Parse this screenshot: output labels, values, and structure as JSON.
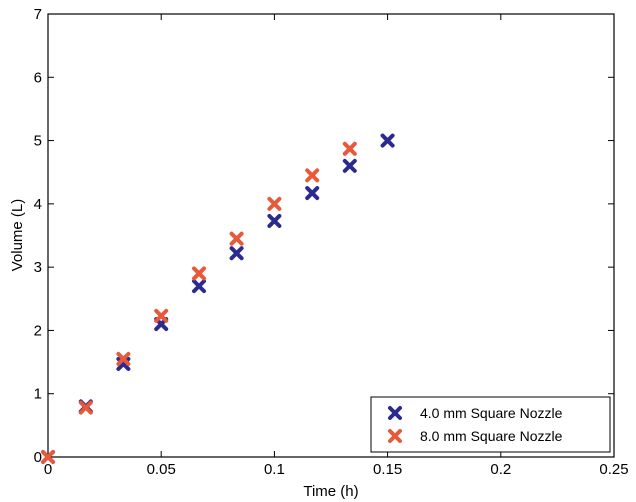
{
  "chart_data": {
    "type": "scatter",
    "title": "",
    "xlabel": "Time (h)",
    "ylabel": "Volume (L)",
    "xlim": [
      0,
      0.25
    ],
    "ylim": [
      0,
      7
    ],
    "xticks": [
      0,
      0.05,
      0.1,
      0.15,
      0.2,
      0.25
    ],
    "xtick_labels": [
      "0",
      "0.05",
      "0.1",
      "0.15",
      "0.2",
      "0.25"
    ],
    "yticks": [
      0,
      1,
      2,
      3,
      4,
      5,
      6,
      7
    ],
    "ytick_labels": [
      "0",
      "1",
      "2",
      "3",
      "4",
      "5",
      "6",
      "7"
    ],
    "grid": false,
    "legend_position": "bottom-right",
    "marker": "x",
    "series": [
      {
        "name": "4.0 mm Square Nozzle",
        "color": "#2b2a8f",
        "x": [
          0,
          0.0167,
          0.0333,
          0.05,
          0.0667,
          0.0833,
          0.1,
          0.1167,
          0.1333,
          0.15
        ],
        "y": [
          0,
          0.8,
          1.47,
          2.1,
          2.7,
          3.22,
          3.73,
          4.17,
          4.6,
          5.0
        ]
      },
      {
        "name": "8.0 mm Square Nozzle",
        "color": "#e8593a",
        "x": [
          0,
          0.0167,
          0.0333,
          0.05,
          0.0667,
          0.0833,
          0.1,
          0.1167,
          0.1333
        ],
        "y": [
          0,
          0.78,
          1.55,
          2.23,
          2.9,
          3.45,
          4.0,
          4.45,
          4.87
        ]
      }
    ]
  }
}
